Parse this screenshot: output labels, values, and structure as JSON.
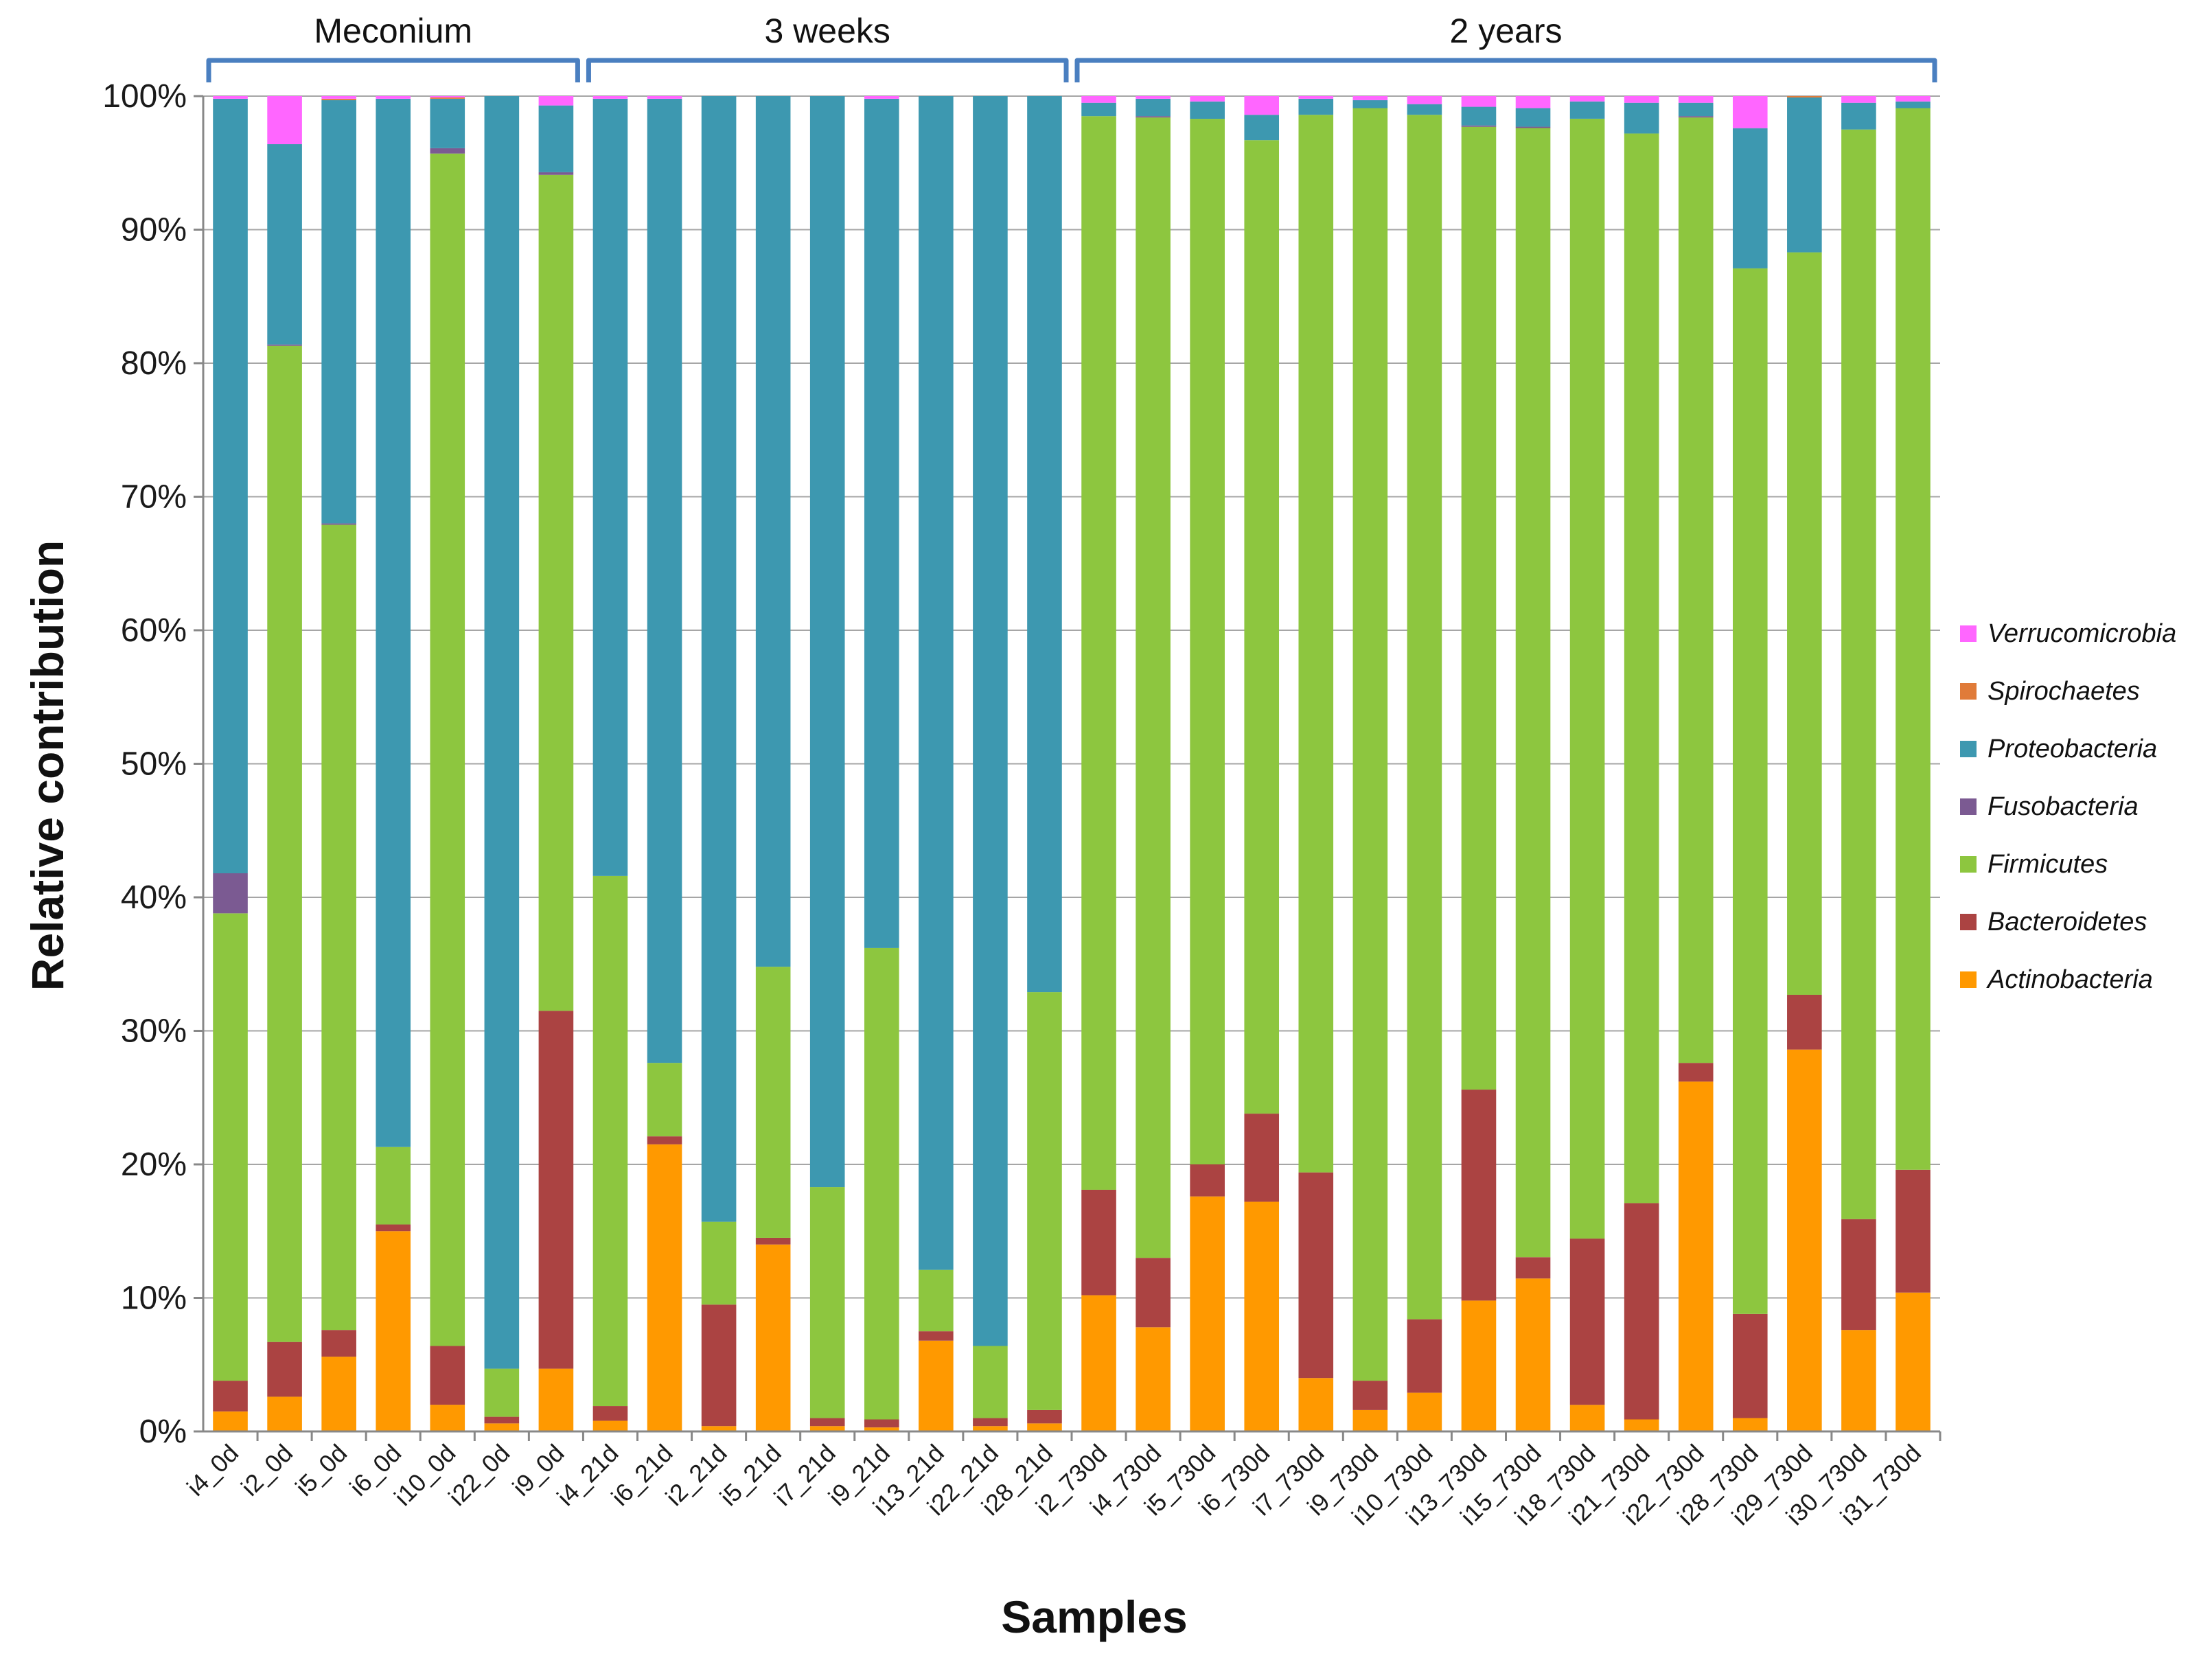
{
  "chart_data": {
    "type": "bar",
    "stacked": true,
    "normalized_percent": true,
    "title": "",
    "xlabel": "Samples",
    "ylabel": "Relative contribution",
    "ylim": [
      0,
      100
    ],
    "yticks": [
      "0%",
      "10%",
      "20%",
      "30%",
      "40%",
      "50%",
      "60%",
      "70%",
      "80%",
      "90%",
      "100%"
    ],
    "legend_position": "right",
    "groups": [
      {
        "label": "Meconium",
        "start": 0,
        "end": 6
      },
      {
        "label": "3 weeks",
        "start": 7,
        "end": 15
      },
      {
        "label": "2 years",
        "start": 16,
        "end": 31
      }
    ],
    "categories": [
      "i4_0d",
      "i2_0d",
      "i5_0d",
      "i6_0d",
      "i10_0d",
      "i22_0d",
      "i9_0d",
      "i4_21d",
      "i6_21d",
      "i2_21d",
      "i5_21d",
      "i7_21d",
      "i9_21d",
      "i13_21d",
      "i22_21d",
      "i28_21d",
      "i2_730d",
      "i4_730d",
      "i5_730d",
      "i6_730d",
      "i7_730d",
      "i9_730d",
      "i10_730d",
      "i13_730d",
      "i15_730d",
      "i18_730d",
      "i21_730d",
      "i22_730d",
      "i28_730d",
      "i29_730d",
      "i30_730d",
      "i31_730d"
    ],
    "series": [
      {
        "name": "Actinobacteria",
        "color": "#FF9900",
        "values": [
          1.5,
          2.6,
          5.6,
          15.0,
          2.0,
          0.6,
          4.7,
          0.8,
          21.5,
          0.4,
          14.0,
          0.4,
          0.3,
          6.8,
          0.4,
          0.6,
          10.2,
          7.8,
          17.6,
          17.2,
          4.0,
          1.6,
          2.9,
          9.8,
          11.5,
          2.0,
          0.9,
          26.2,
          1.0,
          28.6,
          7.6,
          10.4
        ]
      },
      {
        "name": "Bacteroidetes",
        "color": "#AB4342",
        "values": [
          2.3,
          4.1,
          2.0,
          0.5,
          4.4,
          0.5,
          26.8,
          1.1,
          0.6,
          9.1,
          0.5,
          0.6,
          0.6,
          0.7,
          0.6,
          1.0,
          7.9,
          5.2,
          2.4,
          6.6,
          15.4,
          2.2,
          5.5,
          15.8,
          1.6,
          12.5,
          16.2,
          1.4,
          7.8,
          4.1,
          8.3,
          9.2
        ]
      },
      {
        "name": "Firmicutes",
        "color": "#8DC63F",
        "values": [
          35.0,
          74.6,
          60.3,
          5.8,
          89.3,
          3.6,
          62.6,
          39.7,
          5.5,
          6.2,
          20.3,
          17.3,
          35.3,
          4.6,
          5.4,
          31.3,
          80.4,
          85.4,
          78.3,
          72.9,
          79.2,
          95.3,
          90.2,
          72.1,
          84.9,
          84.2,
          80.1,
          70.8,
          78.3,
          55.6,
          81.6,
          79.5
        ]
      },
      {
        "name": "Fusobacteria",
        "color": "#7B5A92",
        "values": [
          3.0,
          0.1,
          0.1,
          0,
          0.4,
          0,
          0.2,
          0,
          0,
          0,
          0,
          0,
          0,
          0,
          0,
          0,
          0,
          0.1,
          0,
          0,
          0,
          0,
          0,
          0.1,
          0.1,
          0,
          0,
          0.1,
          0,
          0,
          0,
          0
        ]
      },
      {
        "name": "Proteobacteria",
        "color": "#3D98B0",
        "values": [
          58.0,
          15.0,
          31.7,
          78.5,
          3.7,
          95.3,
          5.0,
          58.2,
          72.2,
          84.3,
          65.2,
          81.7,
          63.6,
          87.9,
          93.6,
          67.1,
          1.0,
          1.3,
          1.3,
          1.9,
          1.2,
          0.6,
          0.8,
          1.4,
          1.4,
          1.3,
          2.3,
          1.0,
          10.5,
          11.6,
          2.0,
          0.5
        ]
      },
      {
        "name": "Spirochaetes",
        "color": "#E07B39",
        "values": [
          0,
          0,
          0.1,
          0,
          0.1,
          0,
          0,
          0,
          0,
          0,
          0,
          0,
          0,
          0,
          0,
          0,
          0,
          0,
          0,
          0,
          0,
          0,
          0,
          0,
          0,
          0,
          0,
          0,
          0,
          0.1,
          0,
          0
        ]
      },
      {
        "name": "Verrucomicrobia",
        "color": "#FF66FF",
        "values": [
          0.2,
          3.6,
          0.2,
          0.2,
          0.1,
          0,
          0.7,
          0.2,
          0.2,
          0,
          0,
          0,
          0.2,
          0,
          0,
          0,
          0.5,
          0.2,
          0.4,
          1.4,
          0.2,
          0.3,
          0.6,
          0.8,
          0.9,
          0.4,
          0.5,
          0.5,
          2.4,
          0,
          0.5,
          0.4
        ]
      }
    ]
  }
}
